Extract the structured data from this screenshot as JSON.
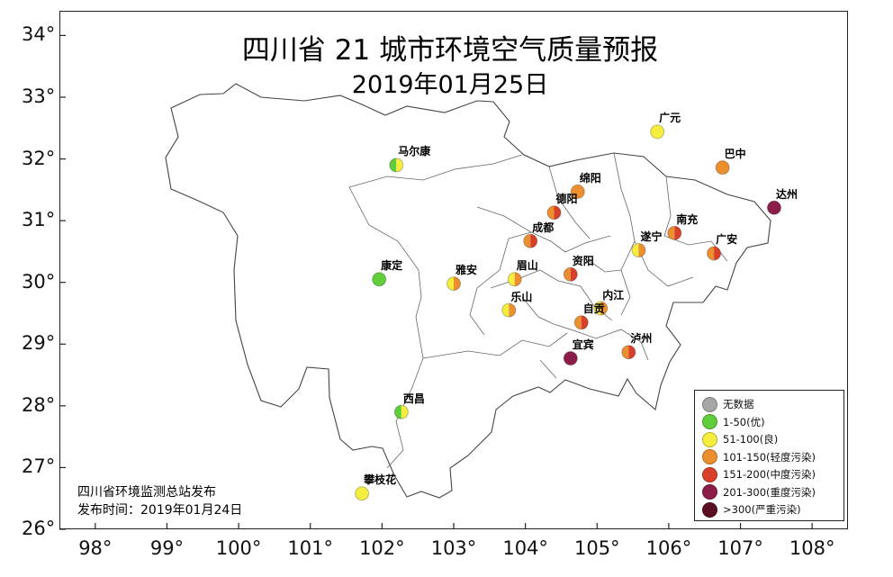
{
  "map": {
    "title": "四川省 21 城市环境空气质量预报",
    "date": "2019年01月25日",
    "y_ticks": [
      "26°",
      "27°",
      "28°",
      "29°",
      "30°",
      "31°",
      "32°",
      "33°",
      "34°"
    ],
    "x_ticks": [
      "98°",
      "99°",
      "100°",
      "101°",
      "102°",
      "103°",
      "104°",
      "105°",
      "106°",
      "107°",
      "108°"
    ],
    "lon_range": [
      97.5,
      108.5
    ],
    "lat_range": [
      26,
      34.4
    ]
  },
  "cities": [
    {
      "name": "马尔康",
      "lon": 102.2,
      "lat": 31.9,
      "colors": [
        "#5fce3a",
        "#f5ee3e"
      ]
    },
    {
      "name": "康定",
      "lon": 101.96,
      "lat": 30.05,
      "colors": [
        "#5fce3a"
      ]
    },
    {
      "name": "雅安",
      "lon": 103.0,
      "lat": 29.98,
      "colors": [
        "#f5ee3e",
        "#ec8f2f"
      ]
    },
    {
      "name": "眉山",
      "lon": 103.85,
      "lat": 30.05,
      "colors": [
        "#f5ee3e",
        "#ec8f2f"
      ]
    },
    {
      "name": "乐山",
      "lon": 103.77,
      "lat": 29.55,
      "colors": [
        "#f5ee3e",
        "#ec8f2f"
      ]
    },
    {
      "name": "成都",
      "lon": 104.07,
      "lat": 30.67,
      "colors": [
        "#ec8f2f",
        "#d8402a"
      ]
    },
    {
      "name": "德阳",
      "lon": 104.4,
      "lat": 31.13,
      "colors": [
        "#ec8f2f",
        "#d8402a"
      ]
    },
    {
      "name": "绵阳",
      "lon": 104.73,
      "lat": 31.47,
      "colors": [
        "#ec8f2f"
      ]
    },
    {
      "name": "资阳",
      "lon": 104.63,
      "lat": 30.13,
      "colors": [
        "#ec8f2f",
        "#d8402a"
      ]
    },
    {
      "name": "内江",
      "lon": 105.05,
      "lat": 29.58,
      "colors": [
        "#f5ee3e",
        "#ec8f2f"
      ]
    },
    {
      "name": "自贡",
      "lon": 104.78,
      "lat": 29.35,
      "colors": [
        "#ec8f2f",
        "#d8402a"
      ]
    },
    {
      "name": "宜宾",
      "lon": 104.63,
      "lat": 28.77,
      "colors": [
        "#8c1d4a"
      ]
    },
    {
      "name": "泸州",
      "lon": 105.44,
      "lat": 28.87,
      "colors": [
        "#ec8f2f",
        "#d8402a"
      ]
    },
    {
      "name": "遂宁",
      "lon": 105.58,
      "lat": 30.52,
      "colors": [
        "#f5ee3e",
        "#ec8f2f"
      ]
    },
    {
      "name": "南充",
      "lon": 106.08,
      "lat": 30.8,
      "colors": [
        "#ec8f2f",
        "#d8402a"
      ]
    },
    {
      "name": "广安",
      "lon": 106.63,
      "lat": 30.47,
      "colors": [
        "#ec8f2f",
        "#d8402a"
      ]
    },
    {
      "name": "广元",
      "lon": 105.84,
      "lat": 32.44,
      "colors": [
        "#f5ee3e"
      ]
    },
    {
      "name": "巴中",
      "lon": 106.75,
      "lat": 31.86,
      "colors": [
        "#ec8f2f"
      ]
    },
    {
      "name": "达州",
      "lon": 107.47,
      "lat": 31.21,
      "colors": [
        "#8c1d4a"
      ]
    },
    {
      "name": "西昌",
      "lon": 102.27,
      "lat": 27.9,
      "colors": [
        "#5fce3a",
        "#f5ee3e"
      ]
    },
    {
      "name": "攀枝花",
      "lon": 101.72,
      "lat": 26.58,
      "colors": [
        "#f5ee3e"
      ]
    }
  ],
  "legend": {
    "items": [
      {
        "label": "无数据",
        "color": "#a6a6a6"
      },
      {
        "label": "1-50(优)",
        "color": "#5fce3a"
      },
      {
        "label": "51-100(良)",
        "color": "#f5ee3e"
      },
      {
        "label": "101-150(轻度污染)",
        "color": "#ec8f2f"
      },
      {
        "label": "151-200(中度污染)",
        "color": "#d8402a"
      },
      {
        "label": "201-300(重度污染)",
        "color": "#8c1d4a"
      },
      {
        "label": ">300(严重污染)",
        "color": "#5a1020"
      }
    ]
  },
  "source": {
    "publisher": "四川省环境监测总站发布",
    "publish_time": "发布时间：2019年01月24日"
  }
}
